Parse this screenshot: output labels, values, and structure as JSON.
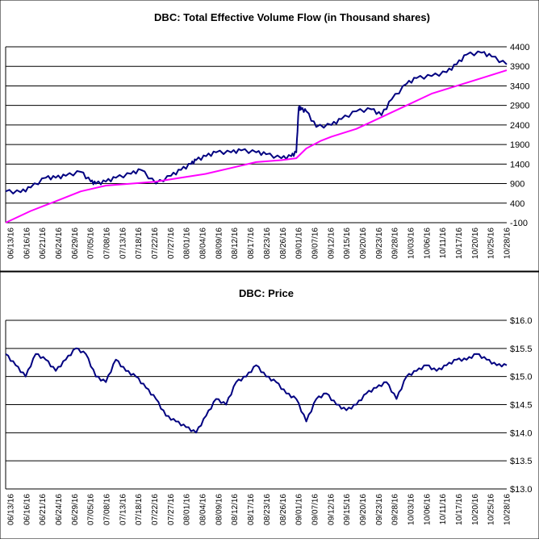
{
  "chart_data": [
    {
      "type": "line",
      "title": "DBC: Total Effective Volume Flow (in Thousand shares)",
      "xlabel": "",
      "ylabel": "",
      "ylim": [
        -100,
        4400
      ],
      "yticks": [
        -100,
        400,
        900,
        1400,
        1900,
        2400,
        2900,
        3400,
        3900,
        4400
      ],
      "ytick_labels": [
        "-100",
        "400",
        "900",
        "1400",
        "1900",
        "2400",
        "2900",
        "3400",
        "3900",
        "4400"
      ],
      "grid": "horizontal",
      "x_tick_labels": [
        "06/13/16",
        "06/16/16",
        "06/21/16",
        "06/24/16",
        "06/29/16",
        "07/05/16",
        "07/08/16",
        "07/13/16",
        "07/18/16",
        "07/22/16",
        "07/27/16",
        "08/01/16",
        "08/04/16",
        "08/09/16",
        "08/12/16",
        "08/17/16",
        "08/23/16",
        "08/26/16",
        "09/01/16",
        "09/07/16",
        "09/12/16",
        "09/15/16",
        "09/20/16",
        "09/23/16",
        "09/28/16",
        "10/03/16",
        "10/06/16",
        "10/11/16",
        "10/17/16",
        "10/20/16",
        "10/25/16",
        "10/28/16"
      ],
      "series": [
        {
          "color": "#000080",
          "x": [
            0,
            0.03,
            0.05,
            0.08,
            0.1,
            0.12,
            0.15,
            0.17,
            0.18,
            0.2,
            0.22,
            0.25,
            0.27,
            0.3,
            0.33,
            0.35,
            0.37,
            0.38,
            0.4,
            0.42,
            0.45,
            0.47,
            0.5,
            0.52,
            0.55,
            0.57,
            0.58,
            0.585,
            0.59,
            0.6,
            0.62,
            0.65,
            0.67,
            0.7,
            0.73,
            0.75,
            0.77,
            0.8,
            0.82,
            0.85,
            0.88,
            0.9,
            0.92,
            0.95,
            0.97,
            1
          ],
          "values": [
            700,
            680,
            800,
            1050,
            1050,
            1100,
            1200,
            950,
            900,
            950,
            1050,
            1150,
            1250,
            900,
            1100,
            1250,
            1400,
            1500,
            1600,
            1700,
            1700,
            1750,
            1700,
            1650,
            1550,
            1600,
            1700,
            2850,
            2800,
            2750,
            2350,
            2400,
            2550,
            2750,
            2800,
            2650,
            3050,
            3450,
            3600,
            3650,
            3750,
            3950,
            4200,
            4250,
            4150,
            3950
          ]
        },
        {
          "color": "#ff00ff",
          "x": [
            0,
            0.05,
            0.1,
            0.15,
            0.2,
            0.25,
            0.3,
            0.35,
            0.4,
            0.45,
            0.5,
            0.55,
            0.58,
            0.6,
            0.63,
            0.65,
            0.7,
            0.75,
            0.8,
            0.85,
            0.9,
            0.95,
            1
          ],
          "values": [
            -100,
            200,
            450,
            700,
            850,
            900,
            950,
            1050,
            1150,
            1300,
            1450,
            1500,
            1550,
            1800,
            2000,
            2100,
            2300,
            2600,
            2900,
            3200,
            3400,
            3600,
            3800
          ]
        }
      ]
    },
    {
      "type": "line",
      "title": "DBC: Price",
      "xlabel": "",
      "ylabel": "",
      "ylim": [
        13.0,
        16.0
      ],
      "yticks": [
        13.0,
        13.5,
        14.0,
        14.5,
        15.0,
        15.5,
        16.0
      ],
      "ytick_labels": [
        "$13.0",
        "$13.5",
        "$14.0",
        "$14.5",
        "$15.0",
        "$15.5",
        "$16.0"
      ],
      "grid": "horizontal",
      "x_tick_labels": [
        "06/13/16",
        "06/16/16",
        "06/21/16",
        "06/24/16",
        "06/29/16",
        "07/05/16",
        "07/08/16",
        "07/13/16",
        "07/18/16",
        "07/22/16",
        "07/27/16",
        "08/01/16",
        "08/04/16",
        "08/09/16",
        "08/12/16",
        "08/17/16",
        "08/23/16",
        "08/26/16",
        "09/01/16",
        "09/07/16",
        "09/12/16",
        "09/15/16",
        "09/20/16",
        "09/23/16",
        "09/28/16",
        "10/03/16",
        "10/06/16",
        "10/11/16",
        "10/17/16",
        "10/20/16",
        "10/25/16",
        "10/28/16"
      ],
      "series": [
        {
          "color": "#000080",
          "x": [
            0,
            0.02,
            0.04,
            0.06,
            0.08,
            0.1,
            0.12,
            0.14,
            0.16,
            0.18,
            0.2,
            0.22,
            0.24,
            0.26,
            0.28,
            0.3,
            0.32,
            0.34,
            0.36,
            0.38,
            0.4,
            0.42,
            0.44,
            0.46,
            0.48,
            0.5,
            0.52,
            0.54,
            0.56,
            0.58,
            0.6,
            0.62,
            0.64,
            0.66,
            0.68,
            0.7,
            0.72,
            0.74,
            0.76,
            0.78,
            0.8,
            0.82,
            0.84,
            0.86,
            0.88,
            0.9,
            0.92,
            0.94,
            0.96,
            0.98,
            1
          ],
          "values": [
            15.4,
            15.2,
            15.0,
            15.4,
            15.3,
            15.1,
            15.3,
            15.5,
            15.4,
            15.0,
            14.9,
            15.3,
            15.1,
            15.0,
            14.8,
            14.6,
            14.3,
            14.2,
            14.1,
            14.0,
            14.3,
            14.6,
            14.5,
            14.9,
            15.0,
            15.2,
            15.0,
            14.9,
            14.7,
            14.6,
            14.2,
            14.6,
            14.7,
            14.5,
            14.4,
            14.5,
            14.7,
            14.8,
            14.9,
            14.6,
            15.0,
            15.1,
            15.2,
            15.1,
            15.2,
            15.3,
            15.3,
            15.4,
            15.3,
            15.2,
            15.2
          ]
        }
      ]
    }
  ]
}
